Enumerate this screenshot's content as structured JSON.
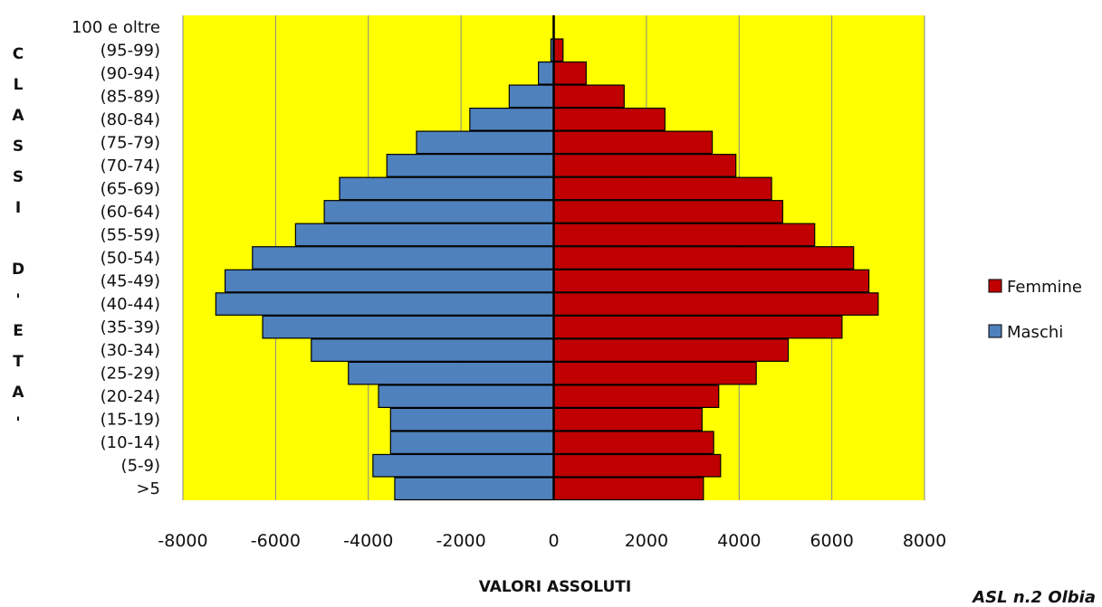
{
  "chart_data": {
    "type": "bar",
    "orientation": "horizontal",
    "stacked": true,
    "categories": [
      "100 e oltre",
      "(95-99)",
      "(90-94)",
      "(85-89)",
      "(80-84)",
      "(75-79)",
      "(70-74)",
      "(65-69)",
      "(60-64)",
      "(55-59)",
      "(50-54)",
      "(45-49)",
      "(40-44)",
      "(35-39)",
      "(30-34)",
      "(25-29)",
      "(20-24)",
      "(15-19)",
      "(10-14)",
      "(5-9)",
      ">5"
    ],
    "series": [
      {
        "name": "Femmine",
        "color": "#C00000",
        "values": [
          10,
          200,
          700,
          1520,
          2400,
          3420,
          3930,
          4700,
          4940,
          5630,
          6470,
          6800,
          7000,
          6220,
          5060,
          4370,
          3560,
          3200,
          3450,
          3600,
          3230
        ]
      },
      {
        "name": "Maschi",
        "color": "#4F81BD",
        "values": [
          -10,
          -60,
          -330,
          -960,
          -1810,
          -2960,
          -3600,
          -4620,
          -4950,
          -5570,
          -6500,
          -7090,
          -7290,
          -6280,
          -5230,
          -4430,
          -3780,
          -3520,
          -3520,
          -3900,
          -3430
        ]
      }
    ],
    "xlim": [
      -8000,
      8000
    ],
    "xticks": [
      "-8000",
      "-6000",
      "-4000",
      "-2000",
      "0",
      "2000",
      "4000",
      "6000",
      "8000"
    ],
    "xlabel": "VALORI ASSOLUTI",
    "ylabel": "C L A S S I   D ' E T A '",
    "ylabel_letters": [
      "C",
      "L",
      "A",
      "S",
      "S",
      "I",
      "",
      "D",
      "'",
      "E",
      "T",
      "A",
      "'"
    ],
    "grid": "vertical",
    "plot_background": "#FFFF00",
    "legend_position": "right",
    "footer": "ASL n.2  Olbia"
  }
}
